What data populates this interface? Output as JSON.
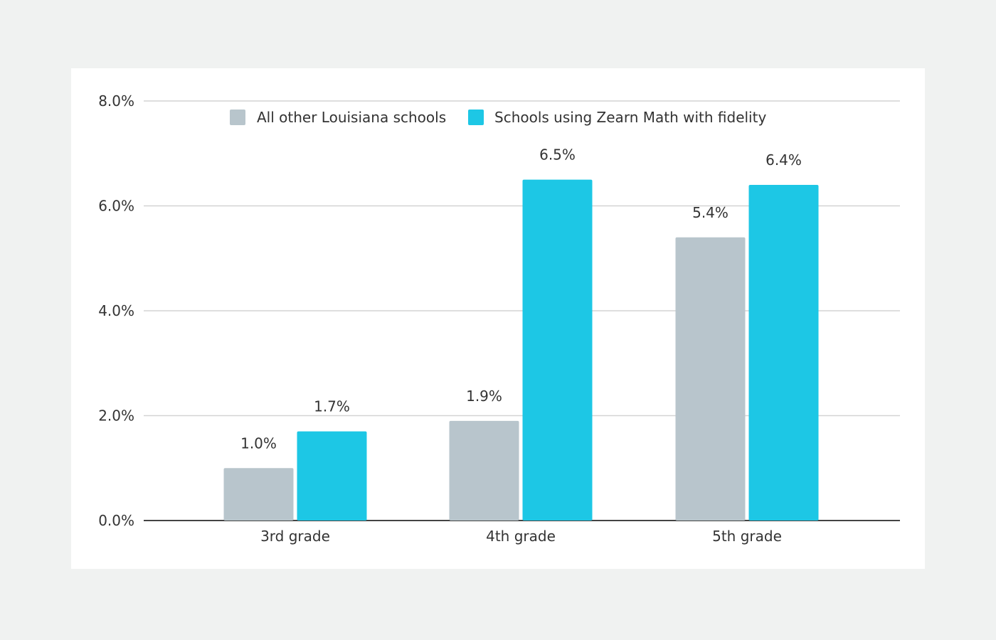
{
  "chart_data": {
    "type": "bar",
    "categories": [
      "3rd grade",
      "4th grade",
      "5th grade"
    ],
    "series": [
      {
        "name": "All other Louisiana schools",
        "values": [
          1.0,
          1.9,
          5.4
        ],
        "labels": [
          "1.0%",
          "1.9%",
          "5.4%"
        ],
        "color": "#b8c5cc"
      },
      {
        "name": "Schools using Zearn Math with fidelity",
        "values": [
          1.7,
          6.5,
          6.4
        ],
        "labels": [
          "1.7%",
          "6.5%",
          "6.4%"
        ],
        "color": "#1dc7e5"
      }
    ],
    "ylim": [
      0,
      8
    ],
    "yticks": [
      0,
      2,
      4,
      6,
      8
    ],
    "ytick_labels": [
      "0.0%",
      "2.0%",
      "4.0%",
      "6.0%",
      "8.0%"
    ],
    "grid": true,
    "legend_position": "top-center",
    "title": "",
    "xlabel": "",
    "ylabel": ""
  }
}
